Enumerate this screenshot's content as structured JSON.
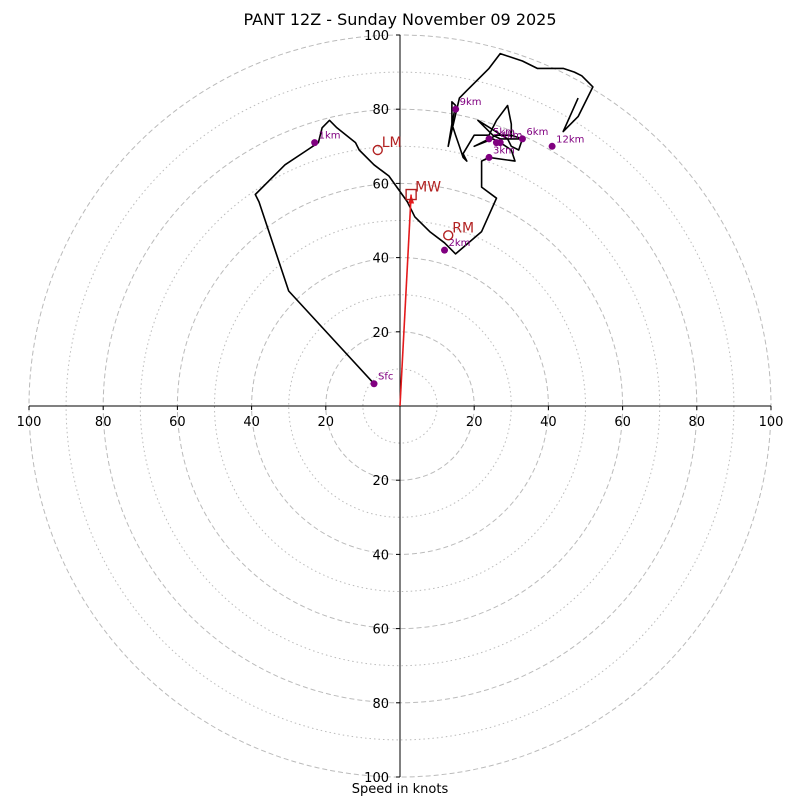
{
  "chart_data": {
    "type": "hodograph",
    "title": "PANT 12Z - Sunday November 09 2025",
    "xlabel": "Speed in knots",
    "units": "knots",
    "range": [
      -100,
      100
    ],
    "major_rings": [
      20,
      40,
      60,
      80,
      100
    ],
    "minor_rings": [
      10,
      30,
      50,
      70,
      90
    ],
    "ticks": [
      100,
      80,
      60,
      40,
      20
    ],
    "line_color": "#000000",
    "marker_color": "#800080",
    "storm_color": "#b22222",
    "mean_wind_color": "#e41a1c",
    "grid_color": "#bbbbbb",
    "trace": [
      [
        -7,
        6
      ],
      [
        -30,
        31
      ],
      [
        -38,
        55
      ],
      [
        -39,
        57
      ],
      [
        -35,
        61
      ],
      [
        -31,
        65
      ],
      [
        -25,
        69
      ],
      [
        -22,
        71
      ],
      [
        -21,
        75
      ],
      [
        -19,
        77
      ],
      [
        -17,
        75
      ],
      [
        -12,
        71
      ],
      [
        -11,
        69
      ],
      [
        -7,
        65
      ],
      [
        -3,
        62
      ],
      [
        2,
        55
      ],
      [
        4,
        51
      ],
      [
        8,
        47
      ],
      [
        12,
        44
      ],
      [
        15,
        41
      ],
      [
        22,
        47
      ],
      [
        26,
        56
      ],
      [
        22,
        59
      ],
      [
        22,
        66
      ],
      [
        24,
        67
      ],
      [
        31,
        66
      ],
      [
        30,
        69
      ],
      [
        27,
        71
      ],
      [
        25,
        72
      ],
      [
        20,
        70
      ],
      [
        26,
        73
      ],
      [
        30,
        73
      ],
      [
        33,
        72
      ],
      [
        30,
        72
      ],
      [
        27,
        72
      ],
      [
        25,
        73
      ],
      [
        21,
        77
      ],
      [
        29,
        72
      ],
      [
        30,
        70
      ],
      [
        32,
        69
      ],
      [
        33,
        72
      ],
      [
        30,
        72
      ],
      [
        30,
        76
      ],
      [
        29,
        81
      ],
      [
        26,
        77
      ],
      [
        24,
        73
      ],
      [
        20,
        73
      ],
      [
        17,
        68
      ],
      [
        18,
        66
      ],
      [
        17,
        67
      ],
      [
        16,
        70
      ],
      [
        15,
        73
      ],
      [
        14,
        76
      ],
      [
        15,
        81
      ],
      [
        14,
        82
      ],
      [
        14,
        76
      ],
      [
        13,
        70
      ],
      [
        16,
        83
      ],
      [
        18,
        85
      ],
      [
        20,
        87
      ],
      [
        24,
        91
      ],
      [
        27,
        95
      ],
      [
        33,
        93
      ],
      [
        37,
        91
      ],
      [
        40,
        91
      ],
      [
        42,
        91
      ],
      [
        44,
        91
      ],
      [
        47,
        90
      ],
      [
        49,
        89
      ],
      [
        52,
        86
      ],
      [
        48,
        78
      ],
      [
        44,
        74
      ],
      [
        48,
        83
      ]
    ],
    "height_markers": [
      {
        "label": "Sfc",
        "u": -7,
        "v": 6
      },
      {
        "label": "1km",
        "u": -23,
        "v": 71
      },
      {
        "label": "2km",
        "u": 12,
        "v": 42
      },
      {
        "label": "3km",
        "u": 24,
        "v": 67
      },
      {
        "label": "4km",
        "u": 26,
        "v": 71
      },
      {
        "label": "5km",
        "u": 24,
        "v": 72
      },
      {
        "label": "6km",
        "u": 33,
        "v": 72
      },
      {
        "label": "9km",
        "u": 15,
        "v": 80
      },
      {
        "label": "12km",
        "u": 41,
        "v": 70
      },
      {
        "label": "",
        "u": 27,
        "v": 71
      }
    ],
    "storm_motions": [
      {
        "label": "LM",
        "u": -6,
        "v": 69,
        "marker": "circle"
      },
      {
        "label": "MW",
        "u": 3,
        "v": 57,
        "marker": "square"
      },
      {
        "label": "RM",
        "u": 13,
        "v": 46,
        "marker": "circle"
      }
    ],
    "mean_wind_vector": {
      "from": [
        0,
        0
      ],
      "to": [
        3,
        57
      ]
    }
  }
}
